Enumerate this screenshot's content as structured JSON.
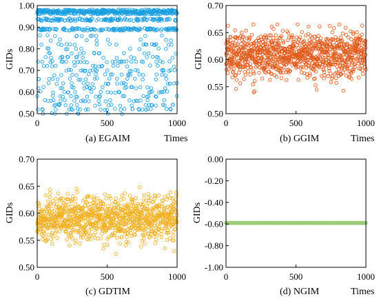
{
  "chart_data": [
    {
      "type": "scatter",
      "caption": "(a) EGAIM",
      "xlabel": "Times",
      "ylabel": "GIDs",
      "xlim": [
        0,
        1000
      ],
      "ylim": [
        0.5,
        1.0
      ],
      "xticks": [
        "0",
        "500",
        "1000"
      ],
      "yticks": [
        "0.50",
        "0.60",
        "0.70",
        "0.80",
        "0.90",
        "1.00"
      ],
      "color": "#1a9fe0",
      "n_points": 1000,
      "distribution": {
        "bands": [
          0.975,
          0.965,
          0.935,
          0.89
        ],
        "band_weights": [
          0.2,
          0.18,
          0.12,
          0.16
        ],
        "scatter_range": [
          0.5,
          0.86
        ]
      }
    },
    {
      "type": "scatter",
      "caption": "(b) GGIM",
      "xlabel": "Times",
      "ylabel": "GIDs",
      "xlim": [
        0,
        1000
      ],
      "ylim": [
        0.5,
        0.7
      ],
      "xticks": [
        "0",
        "500",
        "1000"
      ],
      "yticks": [
        "0.50",
        "0.55",
        "0.60",
        "0.65",
        "0.70"
      ],
      "color": "#e05a1a",
      "n_points": 1000,
      "distribution": {
        "mean": 0.609,
        "sd": 0.021,
        "min": 0.537,
        "max": 0.665
      }
    },
    {
      "type": "scatter",
      "caption": "(c) GDTIM",
      "xlabel": "",
      "ylabel": "GIDs",
      "xlim": [
        0,
        1000
      ],
      "ylim": [
        0.5,
        0.7
      ],
      "xticks": [
        "0",
        "500",
        "1000"
      ],
      "yticks": [
        "0.50",
        "0.55",
        "0.60",
        "0.65",
        "0.70"
      ],
      "color": "#f0b020",
      "n_points": 1000,
      "distribution": {
        "mean": 0.59,
        "sd": 0.021,
        "min": 0.525,
        "max": 0.648
      }
    },
    {
      "type": "scatter",
      "caption": "(d) NGIM",
      "xlabel": "Times",
      "ylabel": "GIDs",
      "xlim": [
        0,
        1000
      ],
      "ylim": [
        -1.0,
        0.0
      ],
      "xticks": [
        "0",
        "500",
        "1000"
      ],
      "yticks": [
        "-1.00",
        "-0.80",
        "-0.60",
        "-0.40",
        "-0.20",
        "0.00"
      ],
      "color": "#9ccc78",
      "n_points": 1000,
      "distribution": {
        "constant": -0.59
      }
    }
  ]
}
